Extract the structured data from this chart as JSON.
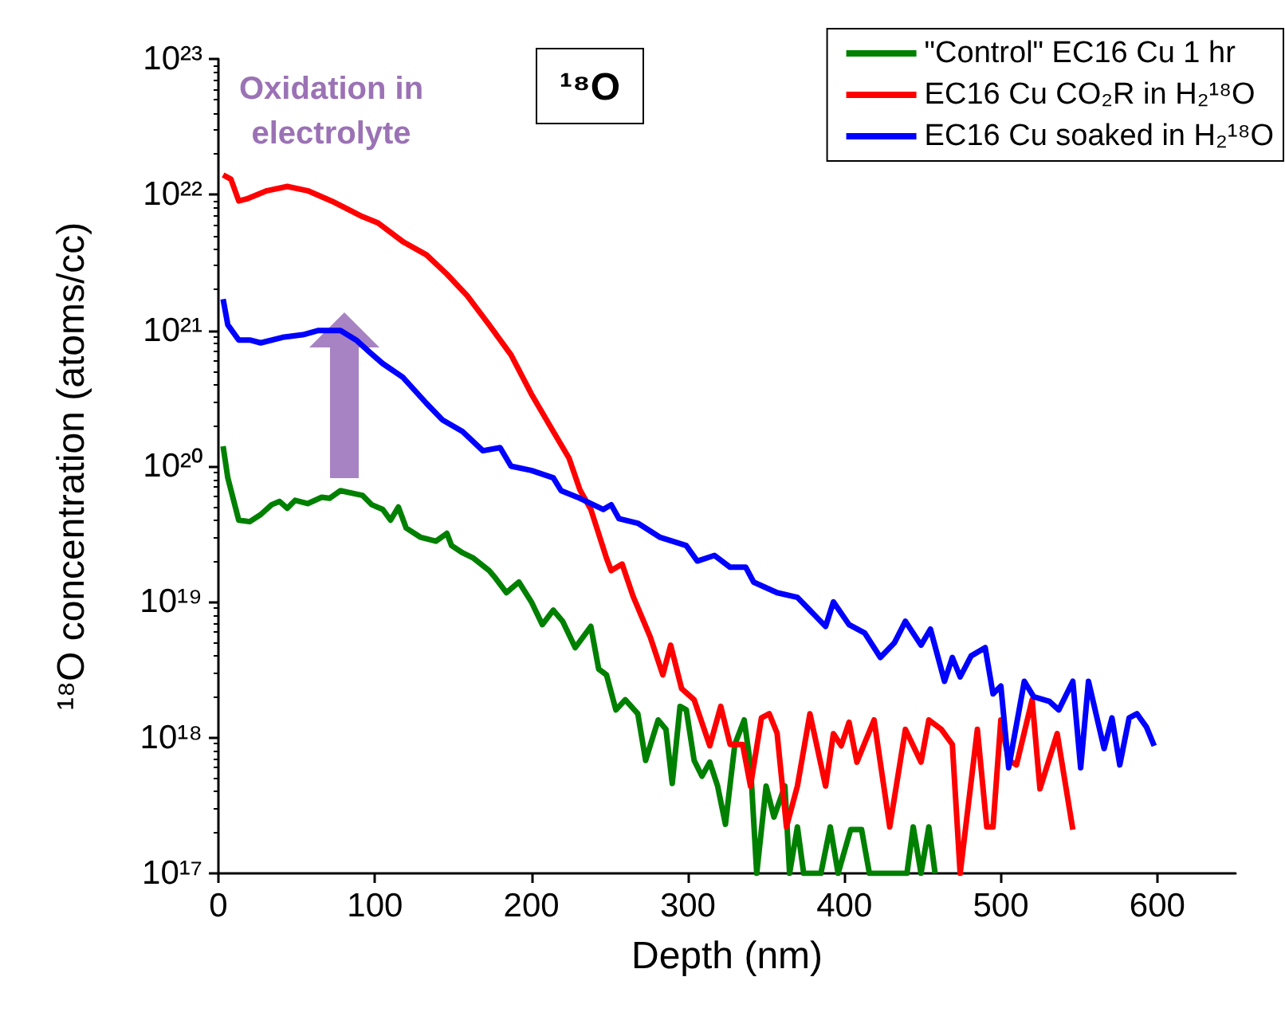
{
  "chart_data": {
    "type": "line",
    "xlabel": "Depth (nm)",
    "ylabel": "¹⁸O concentration (atoms/cc)",
    "xlim": [
      0,
      650
    ],
    "xticks": [
      0,
      100,
      200,
      300,
      400,
      500,
      600
    ],
    "ylim": [
      1e+17,
      1e+23
    ],
    "yticks": [
      {
        "value": 1e+17,
        "label": "10¹⁷"
      },
      {
        "value": 1e+18,
        "label": "10¹⁸"
      },
      {
        "value": 1e+19,
        "label": "10¹⁹"
      },
      {
        "value": 1e+20,
        "label": "10²⁰"
      },
      {
        "value": 1e+21,
        "label": "10²¹"
      },
      {
        "value": 1e+22,
        "label": "10²²"
      },
      {
        "value": 1e+23,
        "label": "10²³"
      }
    ],
    "log": "y",
    "grid": false,
    "legend": "top right",
    "marker": "none",
    "line_style": "solid",
    "annotations": [
      "Oxidation in electrolyte",
      "¹⁸O"
    ],
    "series": [
      {
        "name": "\"Control\" EC16 Cu 1 hr",
        "color": "#008000",
        "x": [
          3,
          6,
          13,
          20,
          27,
          34,
          39,
          44,
          49,
          57,
          66,
          71,
          78,
          92,
          98,
          105,
          110,
          115,
          120,
          129,
          139,
          146,
          149,
          156,
          163,
          173,
          177,
          184,
          192,
          200,
          207,
          214,
          220,
          228,
          238,
          243,
          248,
          254,
          260,
          268,
          273,
          281,
          286,
          290,
          295,
          299,
          304,
          309,
          314,
          319,
          324,
          330,
          336,
          340,
          344,
          350,
          355,
          362,
          365,
          370,
          374,
          385,
          391,
          396,
          404,
          411,
          416,
          440,
          444,
          449,
          454,
          458
        ],
        "values": [
          1.4e+20,
          8.2e+19,
          4e+19,
          3.9e+19,
          4.4e+19,
          5.2e+19,
          5.5e+19,
          4.9e+19,
          5.6e+19,
          5.3e+19,
          5.9e+19,
          5.8e+19,
          6.6e+19,
          6.1e+19,
          5.2e+19,
          4.8e+19,
          4e+19,
          5e+19,
          3.5e+19,
          3e+19,
          2.8e+19,
          3.2e+19,
          2.6e+19,
          2.3e+19,
          2.1e+19,
          1.7e+19,
          1.5e+19,
          1.17e+19,
          1.4e+19,
          1e+19,
          6.8e+18,
          8.7e+18,
          7.2e+18,
          4.6e+18,
          6.6e+18,
          3.2e+18,
          2.9e+18,
          1.6e+18,
          1.9e+18,
          1.5e+18,
          6.8e+17,
          1.35e+18,
          1.15e+18,
          4.6e+17,
          1.7e+18,
          1.6e+18,
          6.8e+17,
          5.2e+17,
          6.6e+17,
          4.4e+17,
          2.3e+17,
          8.9e+17,
          1.35e+18,
          6.3e+17,
          1e+17,
          4.4e+17,
          2.6e+17,
          4.4e+17,
          1e+17,
          2.2e+17,
          1e+17,
          1e+17,
          2.2e+17,
          1e+17,
          2.1e+17,
          2.1e+17,
          1e+17,
          1e+17,
          2.2e+17,
          1e+17,
          2.2e+17,
          1e+17
        ]
      },
      {
        "name": "EC16 Cu CO₂R in H₂¹⁸O",
        "color": "#ff0000",
        "x": [
          3,
          8,
          13,
          18,
          31,
          44,
          57,
          74,
          92,
          102,
          118,
          133,
          146,
          159,
          173,
          187,
          200,
          214,
          224,
          231,
          238,
          248,
          251,
          258,
          265,
          276,
          284,
          289,
          296,
          304,
          314,
          321,
          327,
          335,
          340,
          347,
          352,
          357,
          363,
          370,
          378,
          388,
          393,
          398,
          403,
          408,
          419,
          429,
          439,
          449,
          454,
          462,
          469,
          474,
          485,
          491,
          495,
          500,
          505,
          510,
          520,
          525,
          536,
          546
        ],
        "values": [
          1.4e+22,
          1.3e+22,
          9e+21,
          9.3e+21,
          1.07e+22,
          1.15e+22,
          1.07e+22,
          8.8e+21,
          6.9e+21,
          6.2e+21,
          4.5e+21,
          3.6e+21,
          2.6e+21,
          1.8e+21,
          1.1e+21,
          6.6e+20,
          3.4e+20,
          1.8e+20,
          1.15e+20,
          6.7e+19,
          4.8e+19,
          2.1e+19,
          1.7e+19,
          1.9e+19,
          1.1e+19,
          5.5e+18,
          2.9e+18,
          4.8e+18,
          2.3e+18,
          1.9e+18,
          8.7e+17,
          1.7e+18,
          8.9e+17,
          8.9e+17,
          4.4e+17,
          1.4e+18,
          1.5e+18,
          1.08e+18,
          2.2e+17,
          4.4e+17,
          1.5e+18,
          4.4e+17,
          1.07e+18,
          8.7e+17,
          1.3e+18,
          6.6e+17,
          1.35e+18,
          2.2e+17,
          1.15e+18,
          6.6e+17,
          1.35e+18,
          1.15e+18,
          8.9e+17,
          1e+17,
          1.15e+18,
          2.2e+17,
          2.2e+17,
          1.35e+18,
          6.8e+17,
          6.3e+17,
          1.9e+18,
          4.2e+17,
          1.07e+18,
          2.1e+17
        ]
      },
      {
        "name": "EC16 Cu soaked in H₂¹⁸O",
        "color": "#0000ff",
        "x": [
          3,
          6,
          13,
          20,
          27,
          41,
          54,
          64,
          78,
          88,
          98,
          105,
          118,
          133,
          143,
          156,
          169,
          180,
          187,
          200,
          214,
          219,
          231,
          246,
          251,
          256,
          268,
          282,
          299,
          306,
          317,
          327,
          337,
          342,
          357,
          370,
          388,
          393,
          403,
          413,
          423,
          432,
          439,
          449,
          455,
          464,
          469,
          474,
          481,
          490,
          495,
          500,
          505,
          515,
          521,
          531,
          537,
          546,
          551,
          556,
          566,
          571,
          576,
          582,
          587,
          593,
          598
        ],
        "values": [
          1.7e+21,
          1.1e+21,
          8.5e+20,
          8.5e+20,
          8.1e+20,
          8.9e+20,
          9.3e+20,
          1e+21,
          1e+21,
          8.5e+20,
          6.7e+20,
          5.7e+20,
          4.5e+20,
          2.9e+20,
          2.2e+20,
          1.8e+20,
          1.3e+20,
          1.37e+20,
          1e+20,
          9.3e+19,
          8.2e+19,
          6.6e+19,
          5.8e+19,
          4.8e+19,
          5.2e+19,
          4.1e+19,
          3.8e+19,
          3e+19,
          2.6e+19,
          2e+19,
          2.2e+19,
          1.8e+19,
          1.8e+19,
          1.4e+19,
          1.17e+19,
          1.08e+19,
          6.6e+18,
          1e+19,
          6.8e+18,
          5.9e+18,
          3.9e+18,
          5e+18,
          7.2e+18,
          4.8e+18,
          6.3e+18,
          2.6e+18,
          3.9e+18,
          2.8e+18,
          4e+18,
          4.6e+18,
          2.1e+18,
          2.4e+18,
          6e+17,
          2.6e+18,
          2e+18,
          1.85e+18,
          1.6e+18,
          2.6e+18,
          6e+17,
          2.6e+18,
          8.3e+17,
          1.4e+18,
          6.3e+17,
          1.4e+18,
          1.5e+18,
          1.2e+18,
          8.7e+17
        ]
      }
    ]
  }
}
